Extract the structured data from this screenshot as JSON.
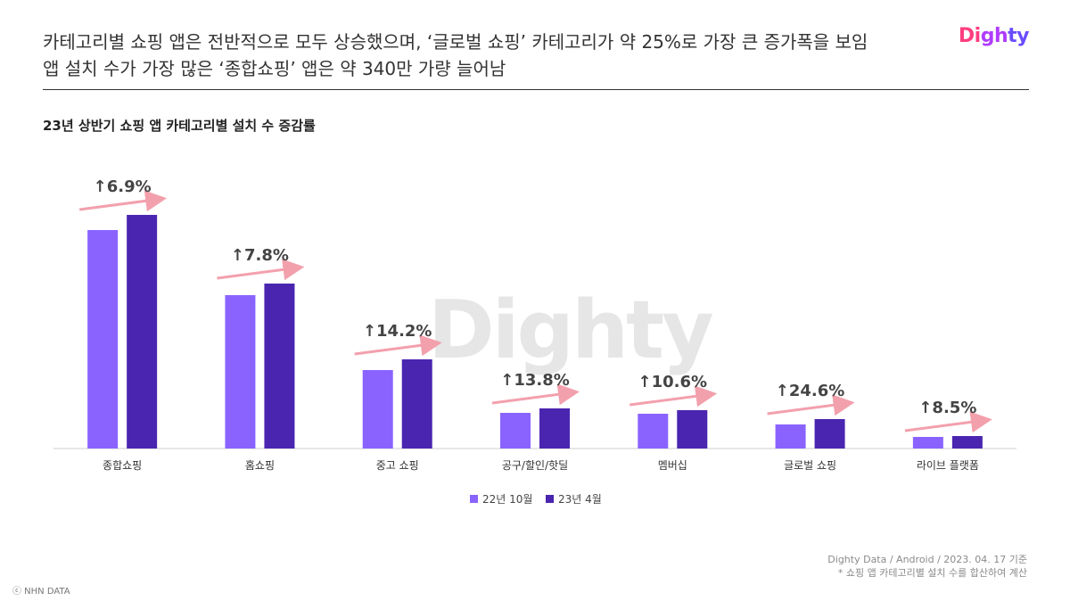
{
  "headline": {
    "line1": "카테고리별 쇼핑 앱은 전반적으로 모두 상승했으며, ‘글로벌 쇼핑’ 카테고리가 약 25%로 가장 큰 증가폭을 보임",
    "line2": "앱 설치 수가 가장 많은 ‘종합쇼핑’ 앱은 약 340만 가량 늘어남"
  },
  "logo": {
    "text": "Dighty",
    "colors": [
      "#ff3d7f",
      "#b03cff",
      "#6a4cff"
    ]
  },
  "watermark": "Dighty",
  "chart_data": {
    "type": "bar",
    "title": "23년 상반기 쇼핑 앱 카테고리별 설치 수 증감률",
    "categories": [
      "종합쇼핑",
      "홈쇼핑",
      "중고 쇼핑",
      "공구/할인/핫딜",
      "멤버십",
      "글로벌 쇼핑",
      "라이브 플랫폼"
    ],
    "series": [
      {
        "name": "22년 10월",
        "color": "#8a63ff",
        "values": [
          245,
          172,
          88,
          40,
          39,
          27,
          13
        ]
      },
      {
        "name": "23년 4월",
        "color": "#4a25b0",
        "values": [
          262,
          185,
          100,
          45,
          43,
          33,
          14
        ]
      }
    ],
    "growth_labels": [
      "↑6.9%",
      "↑7.8%",
      "↑14.2%",
      "↑13.8%",
      "↑10.6%",
      "↑24.6%",
      "↑8.5%"
    ],
    "arrow_color": "#f3a0ad",
    "ylim": [
      0,
      280
    ],
    "legend_position": "bottom-center",
    "grid": false
  },
  "footer": {
    "source": "Dighty Data / Android / 2023. 04. 17 기준",
    "note": "* 쇼핑 앱 카테고리별 설치 수를 합산하여 계산",
    "copyright": "ⓒ NHN DATA"
  }
}
